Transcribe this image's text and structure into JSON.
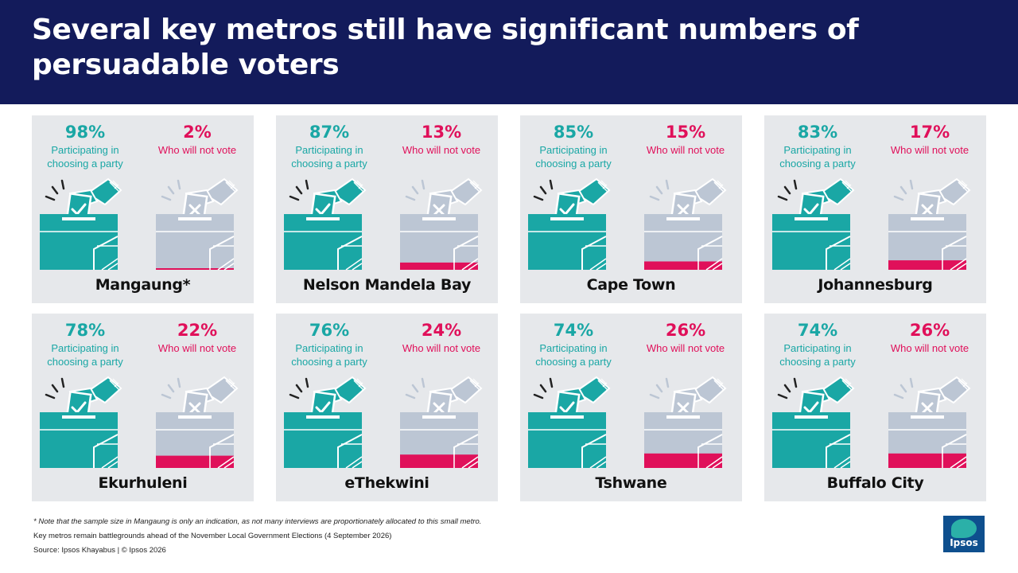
{
  "header": {
    "title": "Several key metros still have significant numbers of persuadable voters"
  },
  "labels": {
    "participating": "Participating in choosing a party",
    "not_vote": "Who will not vote"
  },
  "colors": {
    "header_bg": "#131b5b",
    "teal": "#1aa7a5",
    "pink": "#e0105a",
    "grey_box": "#bcc6d4",
    "card_bg": "#e6e8eb"
  },
  "chart_data": {
    "type": "table",
    "series": [
      {
        "name": "Participating in choosing a party",
        "values": [
          98,
          87,
          85,
          83,
          78,
          76,
          74,
          74
        ]
      },
      {
        "name": "Who will not vote",
        "values": [
          2,
          13,
          15,
          17,
          22,
          24,
          26,
          26
        ]
      }
    ],
    "categories": [
      "Mangaung*",
      "Nelson Mandela Bay",
      "Cape Town",
      "Johannesburg",
      "Ekurhuleni",
      "eThekwini",
      "Tshwane",
      "Buffalo City"
    ],
    "metros": [
      {
        "name": "Mangaung*",
        "participating": "98%",
        "not_vote": "2%",
        "not_vote_value": 2
      },
      {
        "name": "Nelson Mandela Bay",
        "participating": "87%",
        "not_vote": "13%",
        "not_vote_value": 13
      },
      {
        "name": "Cape Town",
        "participating": "85%",
        "not_vote": "15%",
        "not_vote_value": 15
      },
      {
        "name": "Johannesburg",
        "participating": "83%",
        "not_vote": "17%",
        "not_vote_value": 17
      },
      {
        "name": "Ekurhuleni",
        "participating": "78%",
        "not_vote": "22%",
        "not_vote_value": 22
      },
      {
        "name": "eThekwini",
        "participating": "76%",
        "not_vote": "24%",
        "not_vote_value": 24
      },
      {
        "name": "Tshwane",
        "participating": "74%",
        "not_vote": "26%",
        "not_vote_value": 26
      },
      {
        "name": "Buffalo City",
        "participating": "74%",
        "not_vote": "26%",
        "not_vote_value": 26
      }
    ]
  },
  "footer": {
    "note": "* Note that the sample size in Mangaung is only an indication, as not many interviews are proportionately allocated to this small metro.",
    "line2": "Key metros remain battlegrounds ahead of the November Local Government Elections (4 September 2026)",
    "source": "Source: Ipsos Khayabus  |  © Ipsos 2026"
  },
  "logo": {
    "text": "Ipsos"
  }
}
